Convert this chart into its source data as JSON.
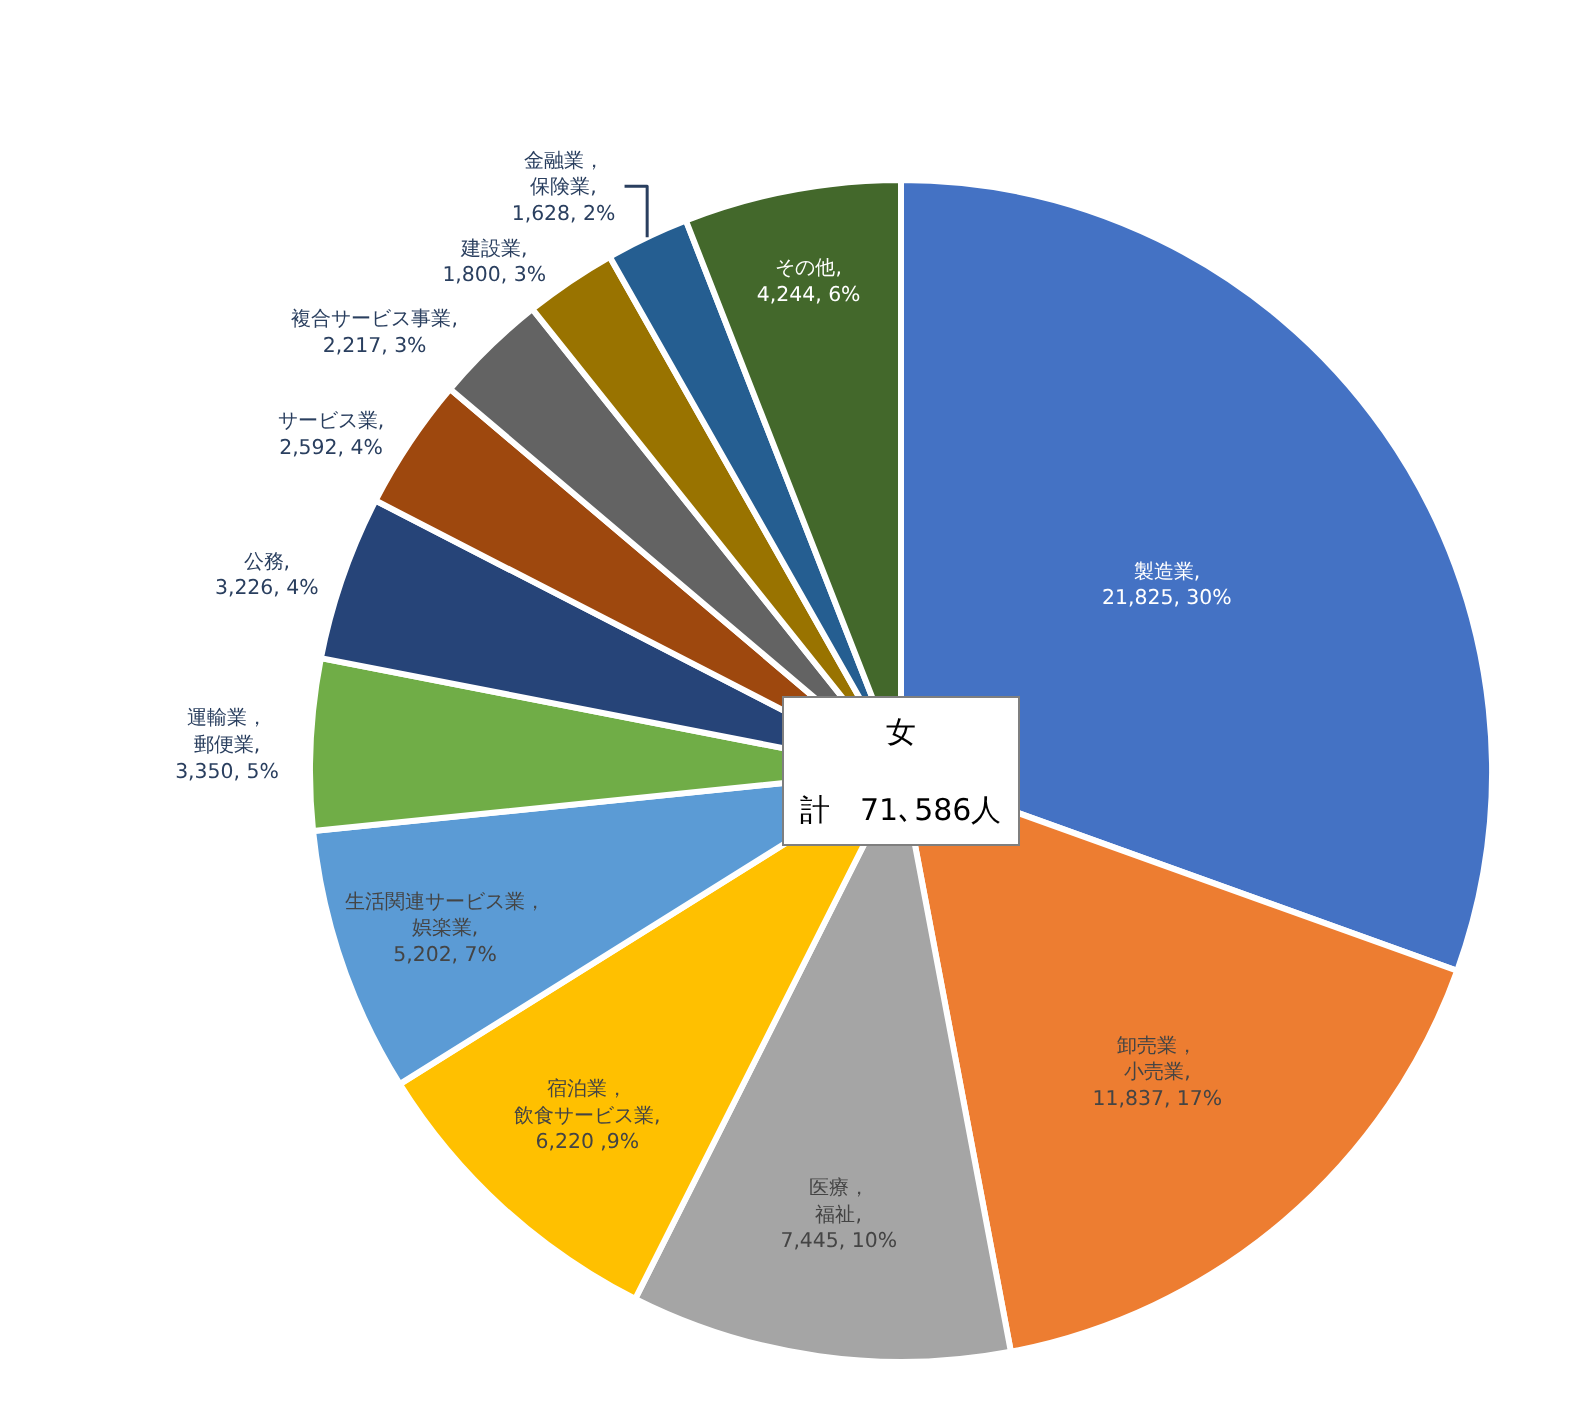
{
  "chart_data": {
    "type": "pie",
    "title": "女",
    "categories": [
      "製造業",
      "卸売業，小売業",
      "医療，福祉",
      "宿泊業，飲食サービス業",
      "生活関連サービス業，娯楽業",
      "運輸業，郵便業",
      "公務",
      "サービス業",
      "複合サービス事業",
      "建設業",
      "金融業，保険業",
      "その他"
    ],
    "values": [
      21825,
      11837,
      7445,
      6220,
      5202,
      3350,
      3226,
      2592,
      2217,
      1800,
      1628,
      4244
    ],
    "value_labels": [
      ", 21,825, 30%",
      ", 11,837, 17%",
      ", 7,445, 10%",
      ", 6,220 ,9%",
      ", 5,202, 7%",
      ", 3,350, 5%",
      ", 3,226, 4%",
      ", 2,592, 4%",
      ", 2,217, 3%",
      ", 1,800, 3%",
      ", 1,628, 2%",
      ", 4,244, 6%"
    ],
    "colors": [
      "#4472c4",
      "#ed7d31",
      "#a5a5a5",
      "#ffc000",
      "#5b9bd5",
      "#70ad47",
      "#264478",
      "#9e480e",
      "#636363",
      "#997300",
      "#255e91",
      "#43682b"
    ],
    "annotations": [
      "計　71､586人"
    ],
    "legend": false
  }
}
